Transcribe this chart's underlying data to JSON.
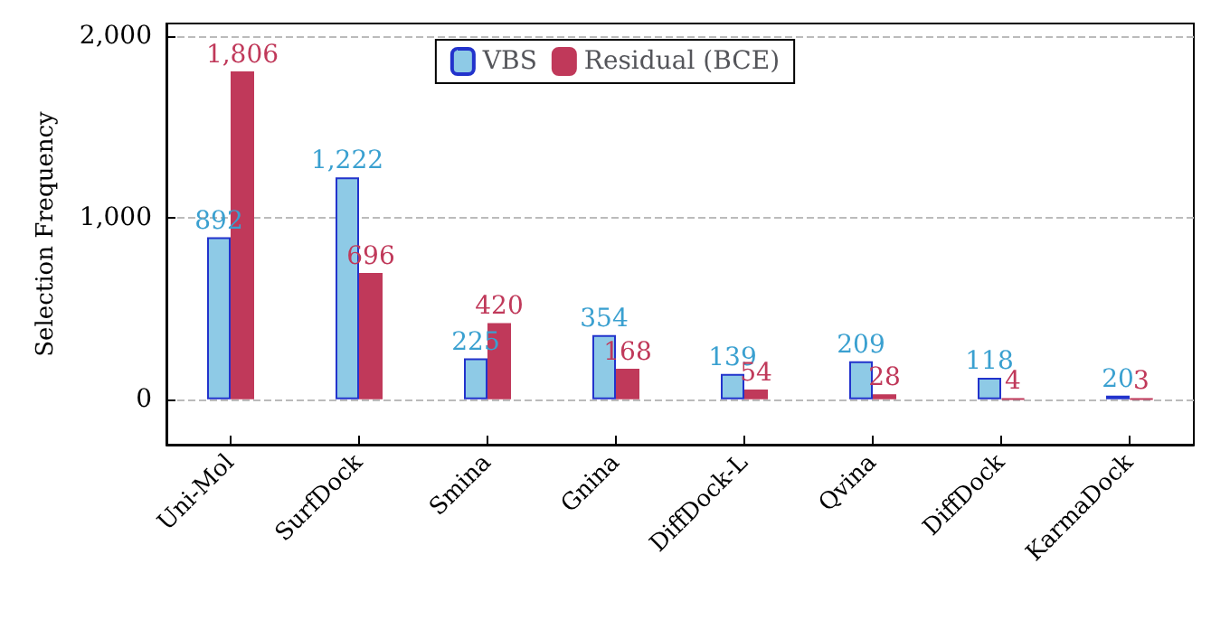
{
  "chart_data": {
    "type": "bar",
    "ylabel": "Selection Frequency",
    "categories": [
      "Uni-Mol",
      "SurfDock",
      "Smina",
      "Gnina",
      "DiffDock-L",
      "Qvina",
      "DiffDock",
      "KarmaDock"
    ],
    "series": [
      {
        "name": "VBS",
        "color": "#8ecae6",
        "values": [
          892,
          1222,
          225,
          354,
          139,
          209,
          118,
          20
        ],
        "value_labels": [
          "892",
          "1,222",
          "225",
          "354",
          "139",
          "209",
          "118",
          "20"
        ]
      },
      {
        "name": "Residual (BCE)",
        "color": "#c0395a",
        "values": [
          1806,
          696,
          420,
          168,
          54,
          28,
          4,
          3
        ],
        "value_labels": [
          "1,806",
          "696",
          "420",
          "168",
          "54",
          "28",
          "4",
          "3"
        ]
      }
    ],
    "ylim": [
      -250,
      2070
    ],
    "yticks": [
      {
        "value": 0,
        "label": "0"
      },
      {
        "value": 1000,
        "label": "1,000"
      },
      {
        "value": 2000,
        "label": "2,000"
      }
    ],
    "grid": "y",
    "legend": "top"
  }
}
